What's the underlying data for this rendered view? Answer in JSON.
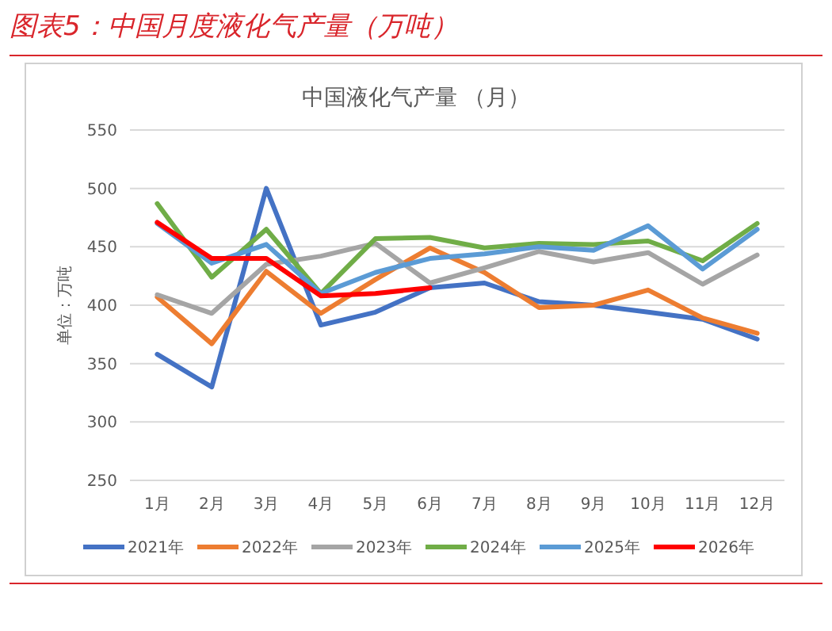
{
  "chart_data": {
    "type": "line",
    "title": "图表5：中国月度液化气产量（万吨）",
    "subtitle": "中国液化气产量 （月）",
    "ylabel": "单位：万吨",
    "categories": [
      "1月",
      "2月",
      "3月",
      "4月",
      "5月",
      "6月",
      "7月",
      "8月",
      "9月",
      "10月",
      "11月",
      "12月"
    ],
    "series": [
      {
        "name": "2021年",
        "color": "#4472c4",
        "values": [
          358,
          330,
          500,
          383,
          394,
          415,
          419,
          403,
          400,
          394,
          388,
          371
        ]
      },
      {
        "name": "2022年",
        "color": "#ed7d31",
        "values": [
          407,
          367,
          429,
          393,
          422,
          449,
          428,
          398,
          400,
          413,
          389,
          376
        ]
      },
      {
        "name": "2023年",
        "color": "#a5a5a5",
        "values": [
          409,
          393,
          435,
          442,
          453,
          419,
          432,
          446,
          437,
          445,
          418,
          443
        ]
      },
      {
        "name": "2024年",
        "color": "#70ad47",
        "values": [
          487,
          424,
          465,
          410,
          457,
          458,
          449,
          453,
          452,
          455,
          438,
          470
        ]
      },
      {
        "name": "2025年",
        "color": "#5b9bd5",
        "values": [
          470,
          436,
          452,
          410,
          428,
          440,
          444,
          450,
          447,
          468,
          431,
          465
        ]
      },
      {
        "name": "2026年",
        "color": "#ff0000",
        "values": [
          471,
          440,
          440,
          408,
          410,
          415,
          null,
          null,
          null,
          null,
          null,
          null
        ]
      }
    ],
    "ylim": [
      250,
      550
    ],
    "yticks": [
      250,
      300,
      350,
      400,
      450,
      500,
      550
    ],
    "grid": "y",
    "legend": "bottom",
    "marker": "none",
    "line_style": "solid"
  }
}
